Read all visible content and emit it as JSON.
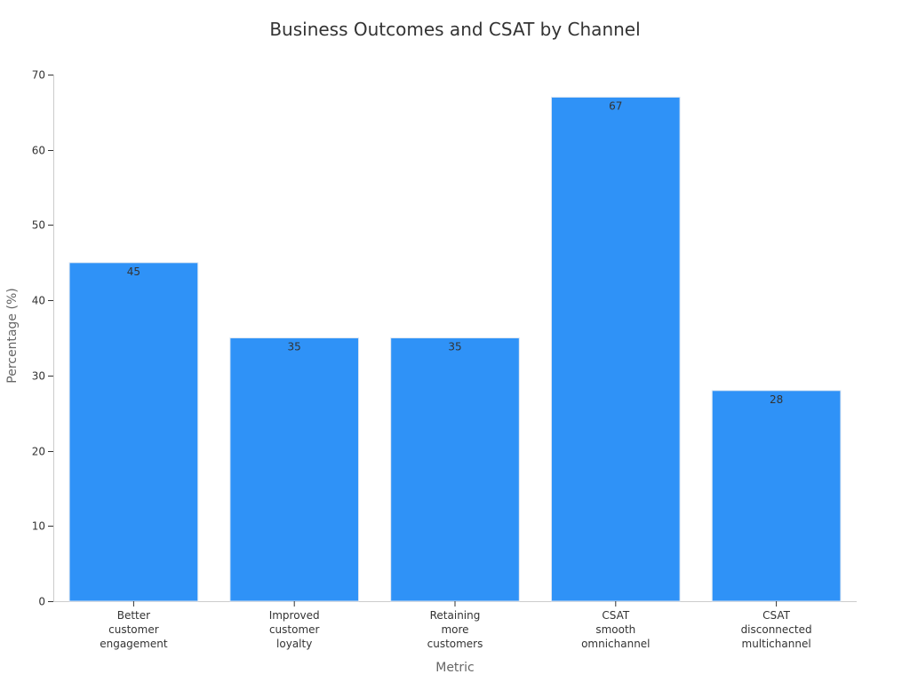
{
  "chart_data": {
    "type": "bar",
    "title": "Business Outcomes and CSAT by Channel",
    "xlabel": "Metric",
    "ylabel": "Percentage (%)",
    "categories": [
      [
        "Better",
        "customer",
        "engagement"
      ],
      [
        "Improved",
        "customer",
        "loyalty"
      ],
      [
        "Retaining",
        "more",
        "customers"
      ],
      [
        "CSAT",
        "smooth",
        "omnichannel"
      ],
      [
        "CSAT",
        "disconnected",
        "multichannel"
      ]
    ],
    "values": [
      45,
      35,
      35,
      67,
      28
    ],
    "ylim": [
      0,
      70
    ],
    "yticks": [
      0,
      10,
      20,
      30,
      40,
      50,
      60,
      70
    ],
    "grid": false,
    "colors": {
      "bar": "#2f92f7",
      "bar_edge": "#dbe6f3",
      "axis": "#cccccc",
      "text": "#333333",
      "muted": "#666666"
    }
  }
}
